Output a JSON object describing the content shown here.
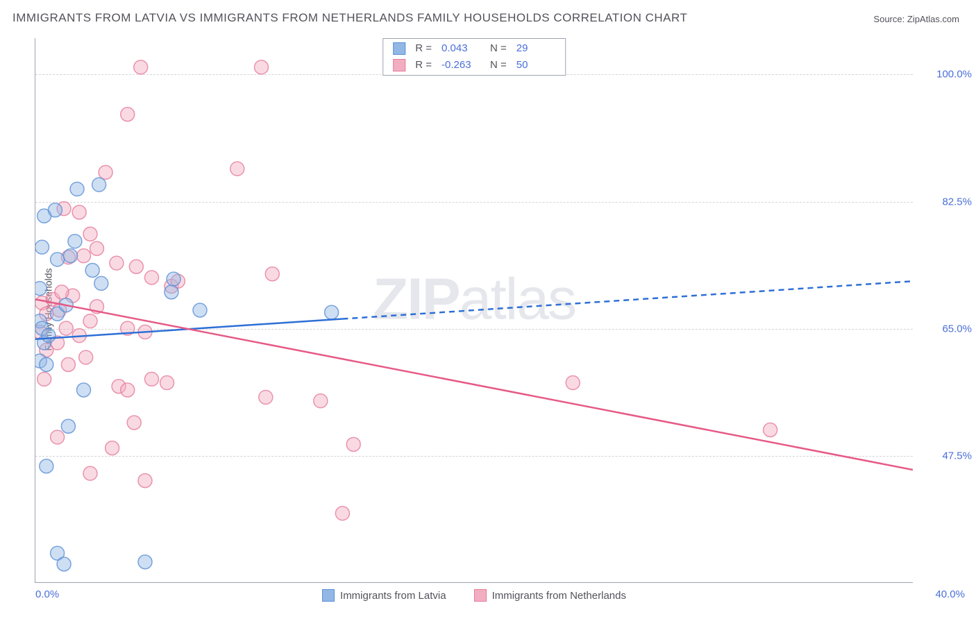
{
  "title": "IMMIGRANTS FROM LATVIA VS IMMIGRANTS FROM NETHERLANDS FAMILY HOUSEHOLDS CORRELATION CHART",
  "source_label": "Source:",
  "source_name": "ZipAtlas.com",
  "watermark_bold": "ZIP",
  "watermark_light": "atlas",
  "chart": {
    "type": "scatter-correlation",
    "background_color": "#ffffff",
    "grid_color": "#d4d4d8",
    "axis_color": "#9ca3af",
    "tick_color": "#4a6fd8",
    "label_color": "#52525b",
    "ylabel": "Family Households",
    "xlim": [
      0,
      40
    ],
    "ylim": [
      30,
      105
    ],
    "yticks": [
      47.5,
      65.0,
      82.5,
      100.0
    ],
    "ytick_labels": [
      "47.5%",
      "65.0%",
      "82.5%",
      "100.0%"
    ],
    "xtick_labels": [
      "0.0%",
      "40.0%"
    ],
    "marker_radius": 10,
    "marker_opacity": 0.45,
    "marker_stroke_width": 1.5,
    "line_width": 2.5,
    "series": [
      {
        "id": "latvia",
        "label": "Immigrants from Latvia",
        "fill_color": "#93b7e5",
        "stroke_color": "#5a8fd6",
        "line_color": "#2e6fd6",
        "r_value": "0.043",
        "n_value": "29",
        "trend": {
          "x1": 0,
          "y1": 63.5,
          "x2": 40,
          "y2": 71.5,
          "solid_until_x": 14
        },
        "points": [
          [
            0.4,
            80.5
          ],
          [
            0.9,
            81.3
          ],
          [
            1.9,
            84.2
          ],
          [
            2.9,
            84.8
          ],
          [
            0.3,
            76.2
          ],
          [
            1.0,
            74.5
          ],
          [
            1.6,
            75.0
          ],
          [
            1.8,
            77.0
          ],
          [
            0.2,
            70.5
          ],
          [
            2.6,
            73.0
          ],
          [
            3.0,
            71.2
          ],
          [
            0.2,
            66.0
          ],
          [
            0.3,
            65.0
          ],
          [
            0.4,
            63.0
          ],
          [
            0.6,
            64.0
          ],
          [
            1.0,
            67.0
          ],
          [
            1.4,
            68.2
          ],
          [
            6.2,
            70.0
          ],
          [
            7.5,
            67.5
          ],
          [
            13.5,
            67.2
          ],
          [
            0.2,
            60.5
          ],
          [
            0.5,
            60.0
          ],
          [
            2.2,
            56.5
          ],
          [
            1.5,
            51.5
          ],
          [
            0.5,
            46.0
          ],
          [
            1.0,
            34.0
          ],
          [
            1.3,
            32.5
          ],
          [
            5.0,
            32.8
          ],
          [
            6.3,
            71.8
          ]
        ]
      },
      {
        "id": "netherlands",
        "label": "Immigrants from Netherlands",
        "fill_color": "#f2aec0",
        "stroke_color": "#e67a9a",
        "line_color": "#e65a86",
        "r_value": "-0.263",
        "n_value": "50",
        "trend": {
          "x1": 0,
          "y1": 69.0,
          "x2": 40,
          "y2": 45.5,
          "solid_until_x": 40
        },
        "points": [
          [
            4.8,
            101.0
          ],
          [
            10.3,
            101.0
          ],
          [
            4.2,
            94.5
          ],
          [
            3.2,
            86.5
          ],
          [
            9.2,
            87.0
          ],
          [
            1.3,
            81.5
          ],
          [
            2.0,
            81.0
          ],
          [
            2.5,
            78.0
          ],
          [
            1.5,
            74.8
          ],
          [
            2.2,
            75.0
          ],
          [
            2.8,
            76.0
          ],
          [
            3.7,
            74.0
          ],
          [
            4.6,
            73.5
          ],
          [
            5.3,
            72.0
          ],
          [
            6.2,
            70.8
          ],
          [
            6.5,
            71.5
          ],
          [
            10.8,
            72.5
          ],
          [
            0.3,
            68.5
          ],
          [
            0.5,
            67.0
          ],
          [
            0.8,
            69.0
          ],
          [
            1.1,
            67.5
          ],
          [
            1.4,
            65.0
          ],
          [
            1.7,
            69.5
          ],
          [
            2.0,
            64.0
          ],
          [
            2.5,
            66.0
          ],
          [
            2.8,
            68.0
          ],
          [
            4.2,
            65.0
          ],
          [
            5.0,
            64.5
          ],
          [
            0.5,
            62.0
          ],
          [
            1.0,
            63.0
          ],
          [
            1.5,
            60.0
          ],
          [
            2.3,
            61.0
          ],
          [
            0.4,
            58.0
          ],
          [
            3.8,
            57.0
          ],
          [
            4.2,
            56.5
          ],
          [
            5.3,
            58.0
          ],
          [
            6.0,
            57.5
          ],
          [
            10.5,
            55.5
          ],
          [
            13.0,
            55.0
          ],
          [
            24.5,
            57.5
          ],
          [
            1.0,
            50.0
          ],
          [
            2.5,
            45.0
          ],
          [
            3.5,
            48.5
          ],
          [
            5.0,
            44.0
          ],
          [
            4.5,
            52.0
          ],
          [
            14.5,
            49.0
          ],
          [
            33.5,
            51.0
          ],
          [
            14.0,
            39.5
          ],
          [
            0.2,
            64.5
          ],
          [
            1.2,
            70.0
          ]
        ]
      }
    ]
  },
  "legend_top": {
    "r_label": "R =",
    "n_label": "N ="
  }
}
